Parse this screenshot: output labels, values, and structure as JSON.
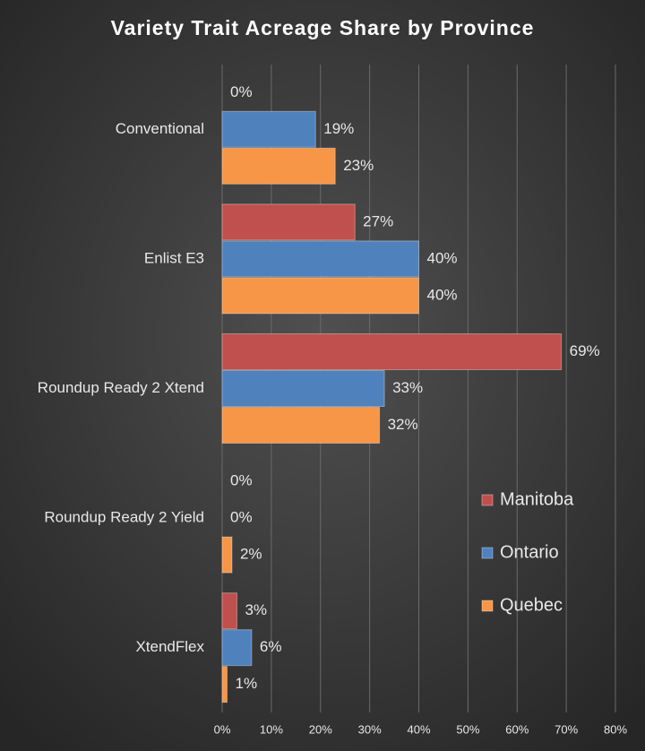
{
  "chart_data": {
    "type": "hbar",
    "title": "Variety Trait Acreage Share by Province",
    "categories": [
      "Conventional",
      "Enlist E3",
      "Roundup Ready 2 Xtend",
      "Roundup Ready 2 Yield",
      "XtendFlex"
    ],
    "series": [
      {
        "name": "Manitoba",
        "color": "#c0504d",
        "values": [
          0,
          27,
          69,
          0,
          3
        ],
        "value_labels": [
          "0%",
          "27%",
          "69%",
          "0%",
          "3%"
        ]
      },
      {
        "name": "Ontario",
        "color": "#4f81bd",
        "values": [
          19,
          40,
          33,
          0,
          6
        ],
        "value_labels": [
          "19%",
          "40%",
          "33%",
          "0%",
          "6%"
        ]
      },
      {
        "name": "Quebec",
        "color": "#f79646",
        "values": [
          23,
          40,
          32,
          2,
          1
        ],
        "value_labels": [
          "23%",
          "40%",
          "32%",
          "2%",
          "1%"
        ]
      }
    ],
    "xlim": [
      0,
      80
    ],
    "xticks": [
      {
        "value": 0,
        "label": "0%"
      },
      {
        "value": 10,
        "label": "10%"
      },
      {
        "value": 20,
        "label": "20%"
      },
      {
        "value": 30,
        "label": "30%"
      },
      {
        "value": 40,
        "label": "40%"
      },
      {
        "value": 50,
        "label": "50%"
      },
      {
        "value": 60,
        "label": "60%"
      },
      {
        "value": 70,
        "label": "70%"
      },
      {
        "value": 80,
        "label": "80%"
      }
    ],
    "grid": true,
    "legend": "right"
  }
}
